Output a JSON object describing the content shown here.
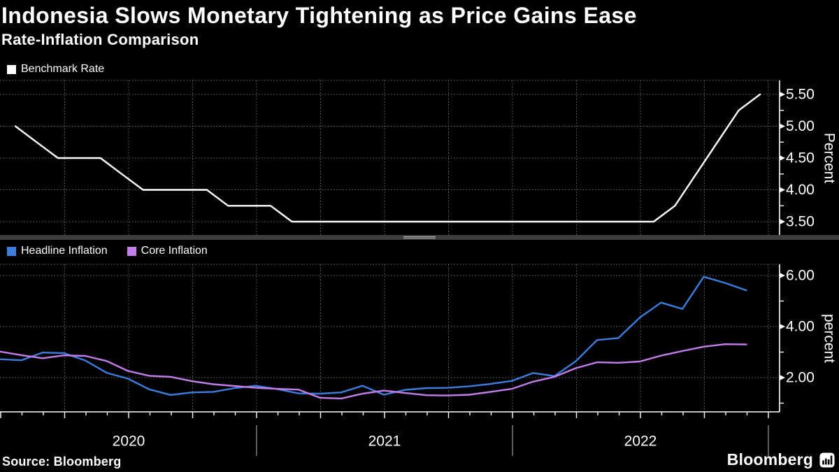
{
  "header": {
    "title": "Indonesia Slows Monetary Tightening as Price Gains Ease",
    "subtitle": "Rate-Inflation Comparison"
  },
  "footer": {
    "source": "Source: Bloomberg",
    "logo": "Bloomberg"
  },
  "x_axis": {
    "year_labels": [
      "2020",
      "2021",
      "2022"
    ]
  },
  "chart_data": [
    {
      "type": "line",
      "panel": "benchmark-rate",
      "legend": [
        {
          "label": "Benchmark Rate",
          "color": "#ffffff"
        }
      ],
      "ylabel": "Percent",
      "ylim": [
        3.3,
        5.72
      ],
      "ytick_values": [
        5.5,
        5.0,
        4.5,
        4.0,
        3.5
      ],
      "ytick_labels": [
        "5.50",
        "5.00",
        "4.50",
        "4.00",
        "3.50"
      ],
      "yticks_minor": [
        5.25,
        4.75,
        4.25,
        3.75
      ],
      "x_start": "Jan 2020",
      "x_end": "Dec 2022",
      "x_freq": "monthly",
      "grid": "dashed",
      "legend_position": "top-left",
      "series": [
        {
          "name": "Benchmark Rate",
          "color": "#ffffff",
          "values": [
            5.0,
            4.75,
            4.5,
            4.5,
            4.5,
            4.25,
            4.0,
            4.0,
            4.0,
            4.0,
            3.75,
            3.75,
            3.75,
            3.5,
            3.5,
            3.5,
            3.5,
            3.5,
            3.5,
            3.5,
            3.5,
            3.5,
            3.5,
            3.5,
            3.5,
            3.5,
            3.5,
            3.5,
            3.5,
            3.5,
            3.5,
            3.75,
            4.25,
            4.75,
            5.25,
            5.5
          ]
        }
      ]
    },
    {
      "type": "line",
      "panel": "inflation",
      "legend": [
        {
          "label": "Headline Inflation",
          "color": "#3c7dde"
        },
        {
          "label": "Core Inflation",
          "color": "#c47ee9"
        }
      ],
      "ylabel": "percent",
      "ylim": [
        0.66,
        6.44
      ],
      "ytick_values": [
        6.0,
        4.0,
        2.0
      ],
      "ytick_labels": [
        "6.00",
        "4.00",
        "2.00"
      ],
      "yticks_minor": [
        5.0,
        3.0,
        1.0
      ],
      "x_start": "Dec 2019",
      "x_end": "Nov 2022",
      "x_freq": "monthly",
      "grid": "dashed",
      "legend_position": "top-left",
      "series": [
        {
          "name": "Headline Inflation",
          "color": "#3c7dde",
          "values": [
            2.72,
            2.68,
            2.98,
            2.96,
            2.67,
            2.19,
            1.96,
            1.54,
            1.32,
            1.42,
            1.44,
            1.59,
            1.68,
            1.55,
            1.38,
            1.37,
            1.42,
            1.68,
            1.33,
            1.52,
            1.59,
            1.6,
            1.66,
            1.75,
            1.87,
            2.18,
            2.06,
            2.64,
            3.47,
            3.55,
            4.35,
            4.94,
            4.69,
            5.95,
            5.71,
            5.42
          ]
        },
        {
          "name": "Core Inflation",
          "color": "#c47ee9",
          "values": [
            3.02,
            2.88,
            2.76,
            2.87,
            2.85,
            2.65,
            2.26,
            2.07,
            2.03,
            1.86,
            1.74,
            1.67,
            1.6,
            1.56,
            1.53,
            1.21,
            1.18,
            1.37,
            1.49,
            1.4,
            1.31,
            1.3,
            1.33,
            1.44,
            1.56,
            1.84,
            2.03,
            2.37,
            2.6,
            2.58,
            2.63,
            2.86,
            3.04,
            3.21,
            3.31,
            3.3
          ]
        }
      ]
    }
  ]
}
